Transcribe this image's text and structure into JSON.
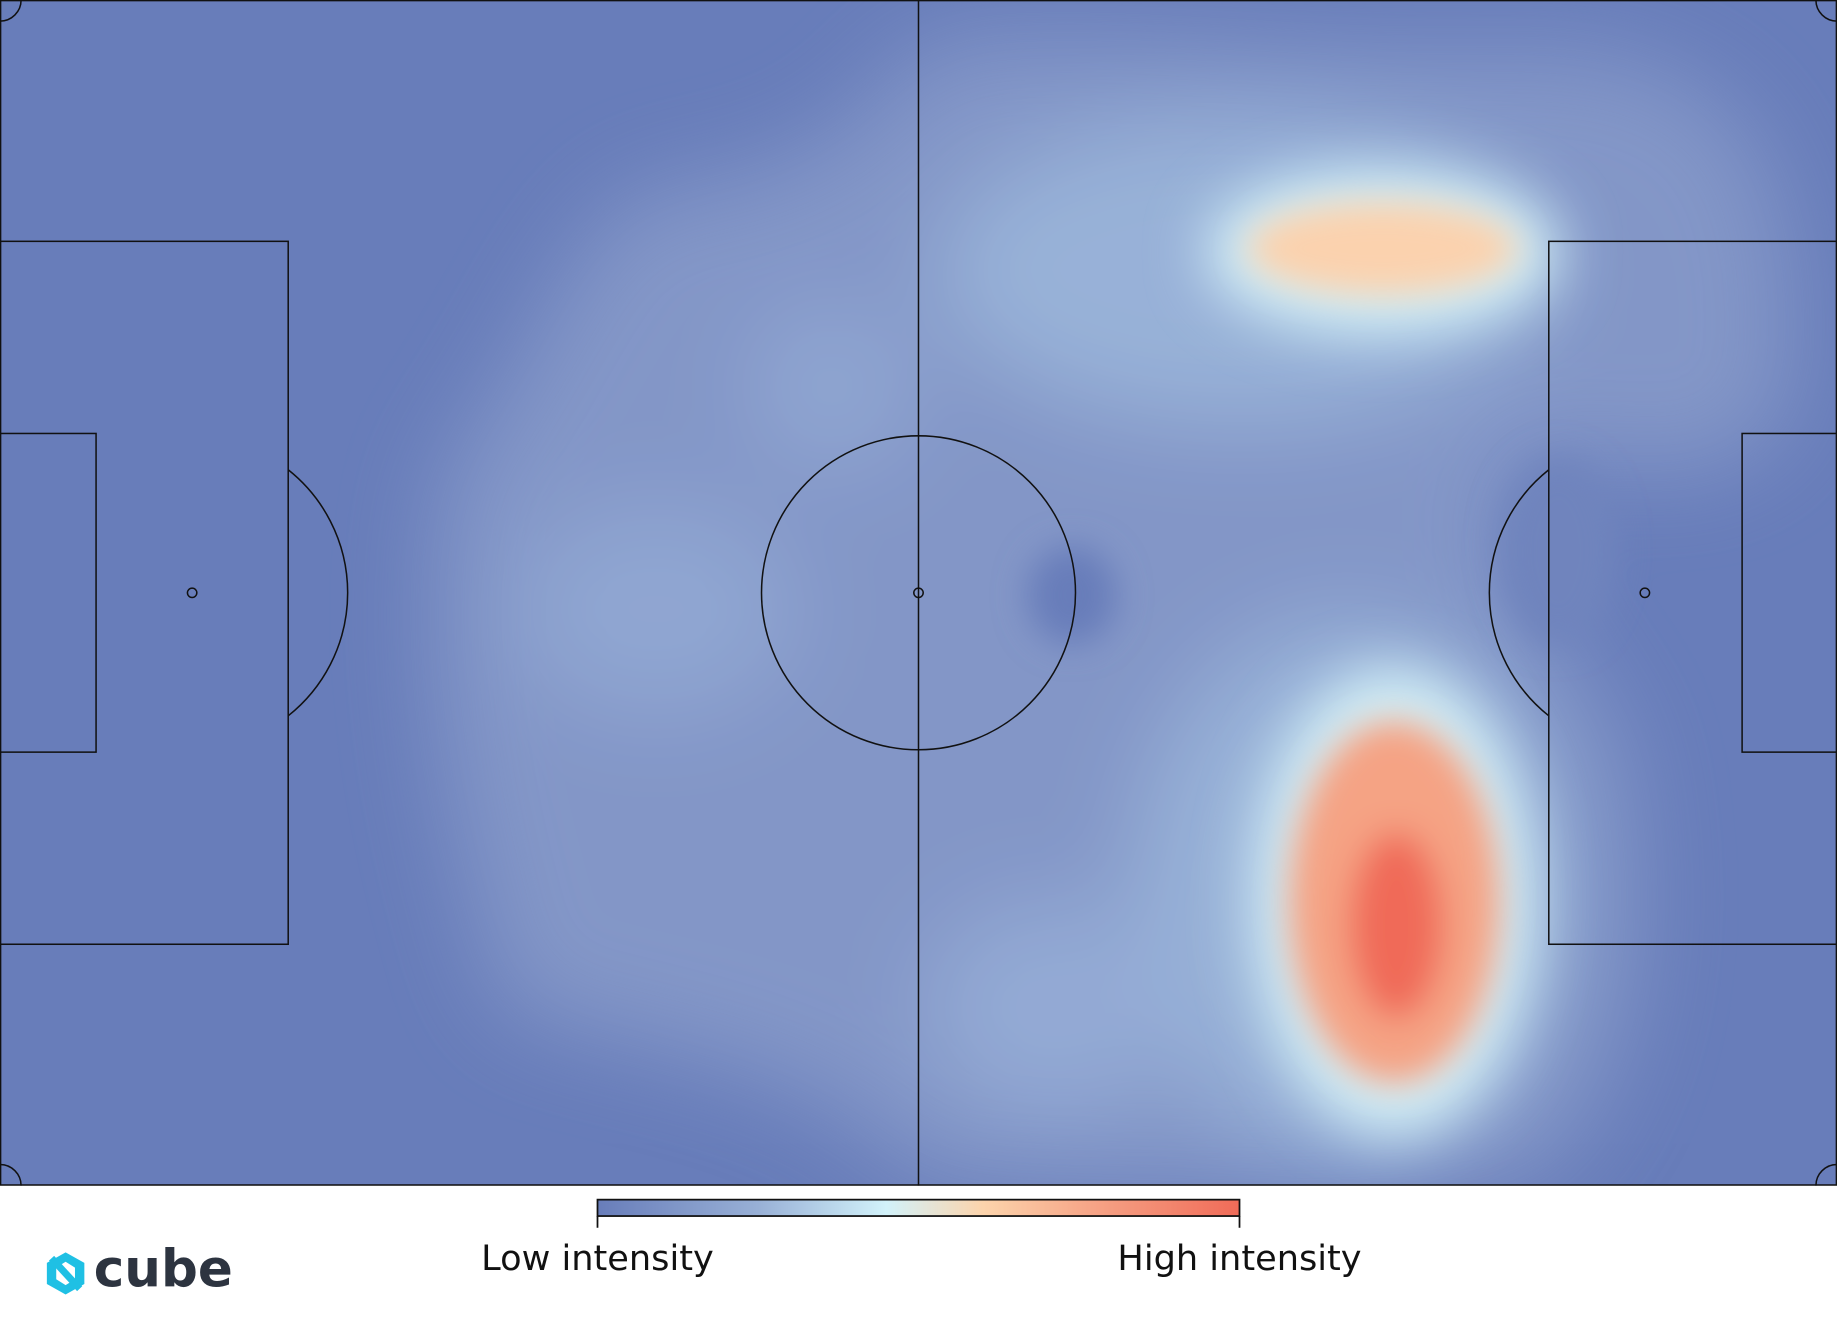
{
  "colorbar": {
    "low_label": "Low intensity",
    "high_label": "High intensity"
  },
  "logo": {
    "text": "cube"
  }
}
